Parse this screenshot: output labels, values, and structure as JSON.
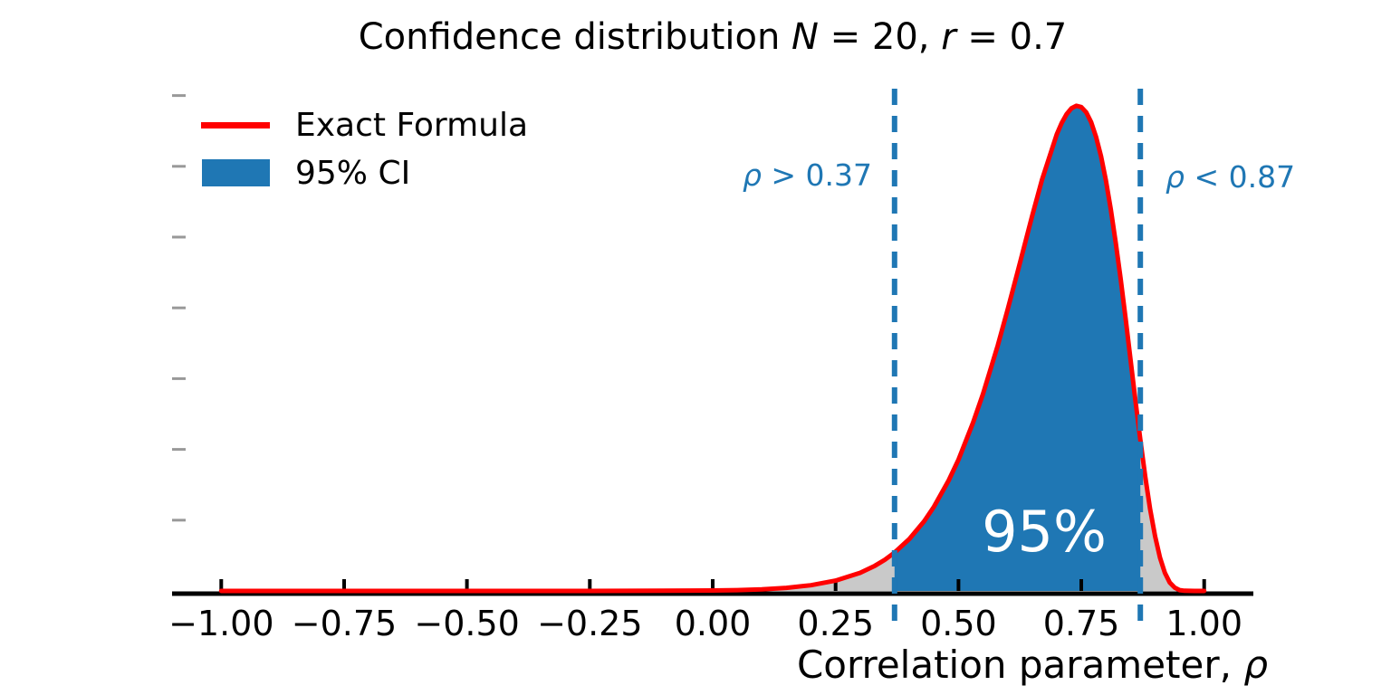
{
  "figure": {
    "title": {
      "text": "Confidence distribution N = 20, r = 0.7",
      "parts": [
        {
          "t": "Confidence distribution "
        },
        {
          "t": "N"
        },
        {
          "t": " = 20, "
        },
        {
          "t": "r"
        },
        {
          "t": " = 0.7"
        }
      ]
    },
    "xlabel": {
      "text": "Correlation parameter, ρ",
      "parts": [
        {
          "t": "Correlation parameter, "
        },
        {
          "t": "ρ"
        }
      ]
    }
  },
  "legend": {
    "items": [
      {
        "label": "Exact Formula",
        "swatch": "line",
        "color": "#ff0000"
      },
      {
        "label": "95% CI",
        "swatch": "patch",
        "color": "#1f77b4"
      }
    ]
  },
  "annotations": {
    "lower_bound": {
      "parts": [
        {
          "t": "ρ"
        },
        {
          "t": " > 0.37"
        }
      ]
    },
    "upper_bound": {
      "parts": [
        {
          "t": "ρ"
        },
        {
          "t": " < 0.87"
        }
      ]
    },
    "ci_label": "95%"
  },
  "chart_data": {
    "type": "area",
    "title": "Confidence distribution N = 20, r = 0.7",
    "xlabel": "Correlation parameter, ρ",
    "ylabel": "",
    "sample_size_N": 20,
    "observed_r": 0.7,
    "xlim": [
      -1.1,
      1.1
    ],
    "ylim": [
      0,
      3.6
    ],
    "grid": false,
    "legend_position": "upper left",
    "x_ticks": [
      -1.0,
      -0.75,
      -0.5,
      -0.25,
      0.0,
      0.25,
      0.5,
      0.75,
      1.0
    ],
    "x_tick_labels": [
      "−1.00",
      "−0.75",
      "−0.50",
      "−0.25",
      "0.00",
      "0.25",
      "0.50",
      "0.75",
      "1.00"
    ],
    "y_ticks": [
      0.5,
      1.0,
      1.5,
      2.0,
      2.5,
      3.0,
      3.5
    ],
    "y_tick_labels": [
      "",
      "",
      "",
      "",
      "",
      "",
      ""
    ],
    "ci": {
      "level": "95%",
      "lower": 0.37,
      "upper": 0.87
    },
    "series": [
      {
        "name": "Exact Formula",
        "type": "line",
        "color": "#ff0000",
        "points": [
          [
            -1.0,
            0
          ],
          [
            -0.75,
            0
          ],
          [
            -0.5,
            0
          ],
          [
            -0.25,
            0
          ],
          [
            -0.1,
            0.001
          ],
          [
            0.0,
            0.003
          ],
          [
            0.05,
            0.006
          ],
          [
            0.1,
            0.011
          ],
          [
            0.15,
            0.022
          ],
          [
            0.2,
            0.04
          ],
          [
            0.25,
            0.073
          ],
          [
            0.3,
            0.128
          ],
          [
            0.33,
            0.178
          ],
          [
            0.35,
            0.22
          ],
          [
            0.37,
            0.271
          ],
          [
            0.4,
            0.367
          ],
          [
            0.43,
            0.492
          ],
          [
            0.45,
            0.594
          ],
          [
            0.48,
            0.78
          ],
          [
            0.5,
            0.928
          ],
          [
            0.53,
            1.191
          ],
          [
            0.55,
            1.393
          ],
          [
            0.58,
            1.735
          ],
          [
            0.6,
            1.986
          ],
          [
            0.62,
            2.25
          ],
          [
            0.65,
            2.651
          ],
          [
            0.67,
            2.905
          ],
          [
            0.7,
            3.226
          ],
          [
            0.71,
            3.306
          ],
          [
            0.72,
            3.369
          ],
          [
            0.73,
            3.411
          ],
          [
            0.74,
            3.428
          ],
          [
            0.75,
            3.419
          ],
          [
            0.76,
            3.381
          ],
          [
            0.77,
            3.312
          ],
          [
            0.78,
            3.208
          ],
          [
            0.79,
            3.072
          ],
          [
            0.8,
            2.9
          ],
          [
            0.81,
            2.696
          ],
          [
            0.82,
            2.462
          ],
          [
            0.83,
            2.204
          ],
          [
            0.84,
            1.927
          ],
          [
            0.85,
            1.638
          ],
          [
            0.86,
            1.35
          ],
          [
            0.87,
            1.069
          ],
          [
            0.88,
            0.809
          ],
          [
            0.89,
            0.578
          ],
          [
            0.9,
            0.386
          ],
          [
            0.91,
            0.235
          ],
          [
            0.92,
            0.128
          ],
          [
            0.93,
            0.059
          ],
          [
            0.94,
            0.023
          ],
          [
            0.95,
            0.006
          ],
          [
            0.96,
            0.001
          ],
          [
            0.98,
            0
          ],
          [
            1.0,
            0
          ]
        ]
      }
    ],
    "fills": [
      {
        "name": "95% CI",
        "color": "#1f77b4",
        "range": [
          0.37,
          0.87
        ]
      },
      {
        "name": "tails",
        "color": "#c9c9c9",
        "range": [
          -1.0,
          1.0
        ]
      }
    ],
    "bound_lines": {
      "style": "dashed",
      "color": "#1f77b4",
      "x_values": [
        0.37,
        0.87
      ]
    },
    "colors": {
      "curve": "#ff0000",
      "ci_fill": "#1f77b4",
      "tail_fill": "#c9c9c9",
      "bound_line": "#1f77b4",
      "annotation_blue": "#1f77b4",
      "ci_text": "#ffffff",
      "axis": "#000000",
      "y_tick": "#999999"
    }
  }
}
